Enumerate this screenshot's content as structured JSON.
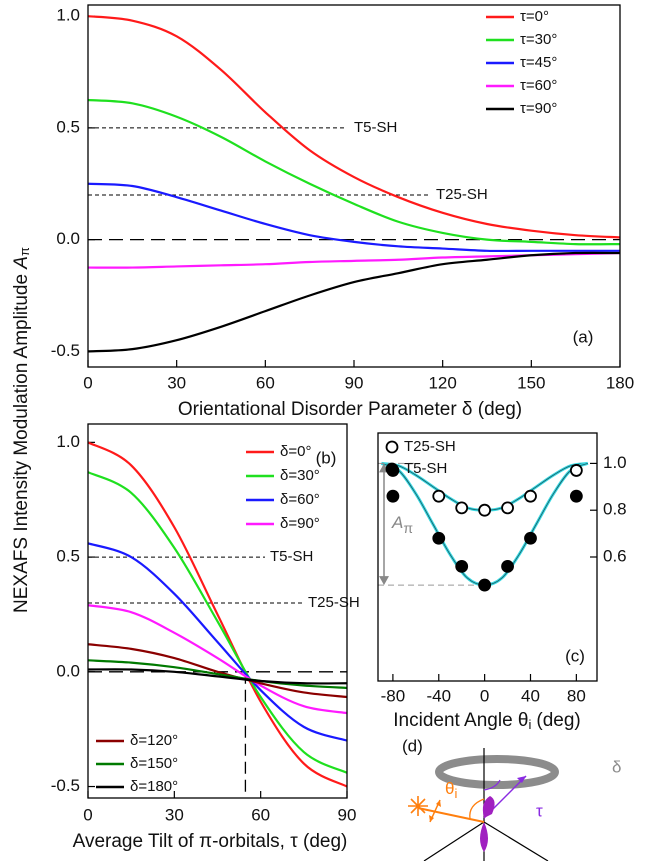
{
  "chart_data": [
    {
      "type": "line",
      "panel_label": "(a)",
      "ylabel": "NEXAFS Intensity Modulation Amplitude",
      "ylabel_symbol": "A",
      "ylabel_subscript": "π",
      "xlabel": "Orientational Disorder Parameter δ (deg)",
      "xlim": [
        0,
        180
      ],
      "xticks": [
        0,
        30,
        60,
        90,
        120,
        150,
        180
      ],
      "ylim": [
        -0.57,
        1.05
      ],
      "yticks": [
        -0.5,
        {
          "value": 0,
          "label": "0.0"
        },
        0.5,
        {
          "value": 1,
          "label": "1.0"
        }
      ],
      "x": [
        0,
        15,
        30,
        45,
        60,
        75,
        90,
        105,
        120,
        135,
        150,
        165,
        180
      ],
      "series": [
        {
          "name": "τ=0°",
          "color": "#ff1a1a",
          "legend": "upper right",
          "values": [
            1.0,
            0.98,
            0.91,
            0.76,
            0.57,
            0.4,
            0.28,
            0.19,
            0.12,
            0.07,
            0.04,
            0.02,
            0.01
          ]
        },
        {
          "name": "τ=30°",
          "color": "#1fe01f",
          "legend": "upper right",
          "values": [
            0.625,
            0.61,
            0.55,
            0.46,
            0.35,
            0.25,
            0.16,
            0.08,
            0.03,
            0.0,
            -0.01,
            -0.02,
            -0.02
          ]
        },
        {
          "name": "τ=45°",
          "color": "#1a1aff",
          "legend": "upper right",
          "values": [
            0.25,
            0.24,
            0.19,
            0.13,
            0.07,
            0.02,
            -0.01,
            -0.03,
            -0.04,
            -0.05,
            -0.05,
            -0.05,
            -0.05
          ]
        },
        {
          "name": "τ=60°",
          "color": "#ff1aff",
          "legend": "upper right",
          "values": [
            -0.125,
            -0.125,
            -0.12,
            -0.115,
            -0.11,
            -0.1,
            -0.095,
            -0.09,
            -0.08,
            -0.075,
            -0.07,
            -0.065,
            -0.06
          ]
        },
        {
          "name": "τ=90°",
          "color": "#000000",
          "legend": "upper right",
          "values": [
            -0.5,
            -0.49,
            -0.45,
            -0.39,
            -0.32,
            -0.25,
            -0.19,
            -0.15,
            -0.11,
            -0.09,
            -0.07,
            -0.06,
            -0.06
          ]
        }
      ],
      "reference_lines": [
        {
          "value": 0.5,
          "label": "T5-SH"
        },
        {
          "value": 0.2,
          "label": "T25-SH"
        }
      ],
      "zero_line": true
    },
    {
      "type": "line",
      "panel_label": "(b)",
      "xlabel": "Average Tilt of π-orbitals, τ (deg)",
      "xlim": [
        0,
        90
      ],
      "xticks": [
        0,
        30,
        60,
        90
      ],
      "ylim": [
        -0.55,
        1.08
      ],
      "yticks": [
        -0.5,
        {
          "value": 0,
          "label": "0.0"
        },
        0.5,
        {
          "value": 1,
          "label": "1.0"
        }
      ],
      "x": [
        0,
        15,
        30,
        45,
        60,
        75,
        90
      ],
      "series": [
        {
          "name": "δ=0°",
          "color": "#ff1a1a",
          "legend": "upper right",
          "values": [
            1.0,
            0.9,
            0.63,
            0.25,
            -0.13,
            -0.4,
            -0.5
          ]
        },
        {
          "name": "δ=30°",
          "color": "#1fe01f",
          "legend": "upper right",
          "values": [
            0.87,
            0.78,
            0.54,
            0.22,
            -0.11,
            -0.35,
            -0.44
          ]
        },
        {
          "name": "δ=60°",
          "color": "#1a1aff",
          "legend": "upper right",
          "values": [
            0.56,
            0.5,
            0.34,
            0.13,
            -0.08,
            -0.24,
            -0.3
          ]
        },
        {
          "name": "δ=90°",
          "color": "#ff1aff",
          "legend": "upper right",
          "values": [
            0.29,
            0.26,
            0.17,
            0.06,
            -0.06,
            -0.15,
            -0.18
          ]
        },
        {
          "name": "δ=120°",
          "color": "#8b0000",
          "legend": "lower left",
          "values": [
            0.12,
            0.1,
            0.06,
            0.0,
            -0.05,
            -0.09,
            -0.11
          ]
        },
        {
          "name": "δ=150°",
          "color": "#007a00",
          "legend": "lower left",
          "values": [
            0.05,
            0.04,
            0.02,
            -0.01,
            -0.04,
            -0.06,
            -0.07
          ]
        },
        {
          "name": "δ=180°",
          "color": "#000000",
          "legend": "lower left",
          "values": [
            0.01,
            0.01,
            0.0,
            -0.02,
            -0.04,
            -0.05,
            -0.05
          ]
        }
      ],
      "reference_lines": [
        {
          "value": 0.5,
          "label": "T5-SH"
        },
        {
          "value": 0.3,
          "label": "T25-SH"
        }
      ],
      "zero_line": true,
      "vline": 54.7
    },
    {
      "type": "scatter",
      "panel_label": "(c)",
      "xlabel": "Incident Angle θ",
      "xlabel_sub": "i",
      "xlabel_unit": "(deg)",
      "xlim": [
        -93,
        98
      ],
      "xticks": [
        -80,
        -40,
        0,
        40,
        80
      ],
      "ylim": [
        0.07,
        1.13
      ],
      "yticks": [
        0.6,
        0.8,
        {
          "value": 1,
          "label": "1.0"
        }
      ],
      "yaxis": "right",
      "amplitude_label": "A",
      "amplitude_label_sub": "π",
      "series": [
        {
          "name": "T25-SH",
          "marker": "open",
          "color": "#000000",
          "legend": "upper left",
          "x": [
            -80,
            -40,
            -20,
            0,
            20,
            40,
            80
          ],
          "values": [
            0.97,
            0.86,
            0.81,
            0.8,
            0.81,
            0.86,
            0.97
          ]
        },
        {
          "name": "T5-SH",
          "marker": "filled",
          "color": "#000000",
          "legend": "upper left",
          "x": [
            -80,
            -40,
            -20,
            0,
            20,
            40,
            80
          ],
          "values": [
            0.86,
            0.68,
            0.56,
            0.48,
            0.56,
            0.68,
            0.86
          ]
        }
      ],
      "fits": [
        {
          "color": "#38d8e0",
          "x": [
            -90,
            -75,
            -60,
            -45,
            -30,
            -15,
            0,
            15,
            30,
            45,
            60,
            75,
            90
          ],
          "values": [
            1.0,
            0.99,
            0.95,
            0.9,
            0.85,
            0.81,
            0.8,
            0.81,
            0.85,
            0.9,
            0.95,
            0.99,
            1.0
          ]
        },
        {
          "color": "#38d8e0",
          "x": [
            -90,
            -75,
            -60,
            -45,
            -30,
            -15,
            0,
            15,
            30,
            45,
            60,
            75,
            90
          ],
          "values": [
            1.0,
            0.97,
            0.87,
            0.74,
            0.61,
            0.51,
            0.48,
            0.51,
            0.61,
            0.74,
            0.87,
            0.97,
            1.0
          ]
        }
      ]
    }
  ],
  "diagram": {
    "label": "(d)",
    "delta": "δ",
    "tau": "τ",
    "theta": "θ",
    "theta_sub": "i"
  }
}
